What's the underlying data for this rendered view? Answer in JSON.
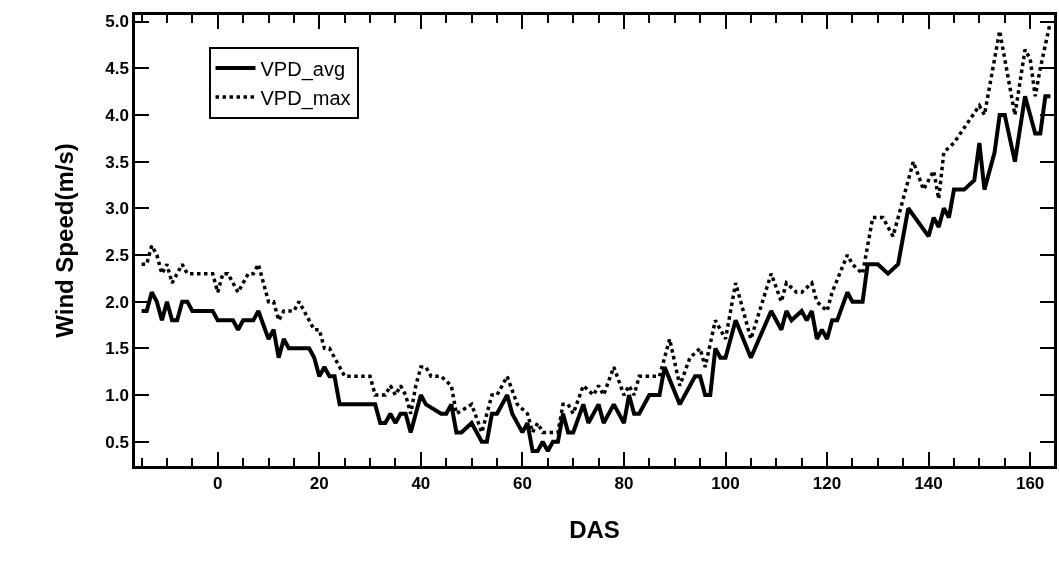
{
  "chart_data": {
    "type": "line",
    "xlabel": "DAS",
    "ylabel": "Wind Speed(m/s)",
    "xlim": [
      -16.3,
      164.7
    ],
    "ylim": [
      0.24,
      5.07
    ],
    "xticks": [
      {
        "value": -15,
        "label": null
      },
      {
        "value": -10,
        "label": null
      },
      {
        "value": -5,
        "label": null
      },
      0,
      {
        "value": 5,
        "label": null
      },
      {
        "value": 10,
        "label": null
      },
      {
        "value": 15,
        "label": null
      },
      20,
      {
        "value": 25,
        "label": null
      },
      {
        "value": 30,
        "label": null
      },
      {
        "value": 35,
        "label": null
      },
      40,
      {
        "value": 45,
        "label": null
      },
      {
        "value": 50,
        "label": null
      },
      {
        "value": 55,
        "label": null
      },
      60,
      {
        "value": 65,
        "label": null
      },
      {
        "value": 70,
        "label": null
      },
      {
        "value": 75,
        "label": null
      },
      80,
      {
        "value": 85,
        "label": null
      },
      {
        "value": 90,
        "label": null
      },
      {
        "value": 95,
        "label": null
      },
      100,
      {
        "value": 105,
        "label": null
      },
      {
        "value": 110,
        "label": null
      },
      {
        "value": 115,
        "label": null
      },
      120,
      {
        "value": 125,
        "label": null
      },
      {
        "value": 130,
        "label": null
      },
      {
        "value": 135,
        "label": null
      },
      140,
      {
        "value": 145,
        "label": null
      },
      {
        "value": 150,
        "label": null
      },
      {
        "value": 155,
        "label": null
      },
      160
    ],
    "yticks": [
      0.5,
      {
        "value": 1,
        "label": "1.0"
      },
      1.5,
      {
        "value": 2,
        "label": "2.0"
      },
      2.5,
      {
        "value": 3,
        "label": "3.0"
      },
      3.5,
      {
        "value": 4,
        "label": "4.0"
      },
      4.5,
      {
        "value": 5,
        "label": "5.0"
      }
    ],
    "legend": "top left",
    "series": [
      {
        "name": "VPD_avg",
        "color": "#000000",
        "line_style": "solid",
        "x": [
          -15,
          -14,
          -13,
          -12,
          -11,
          -10,
          -9,
          -8,
          -7,
          -6,
          -5,
          -1,
          0,
          3,
          4,
          5,
          7,
          8,
          10,
          11,
          12,
          13,
          14,
          18,
          19,
          20,
          21,
          22,
          23,
          24,
          31,
          32,
          33,
          34,
          35,
          36,
          37,
          38,
          39,
          40,
          41,
          44,
          45,
          46,
          47,
          48,
          50,
          52,
          53,
          54,
          55,
          57,
          58,
          60,
          61,
          62,
          63,
          64,
          65,
          66,
          67,
          68,
          69,
          70,
          72,
          73,
          75,
          76,
          78,
          80,
          81,
          82,
          83,
          85,
          87,
          88,
          91,
          93,
          94,
          95,
          96,
          97,
          98,
          99,
          100,
          102,
          105,
          109,
          111,
          112,
          113,
          115,
          116,
          117,
          118,
          119,
          120,
          121,
          122,
          124,
          125,
          127,
          128,
          130,
          132,
          134,
          136,
          140,
          141,
          142,
          143,
          144,
          145,
          147,
          149,
          150,
          151,
          153,
          154,
          155,
          157,
          159,
          161,
          162,
          163,
          164
        ],
        "values": [
          1.9,
          1.9,
          2.1,
          2.0,
          1.8,
          2.0,
          1.8,
          1.8,
          2.0,
          2.0,
          1.9,
          1.9,
          1.8,
          1.8,
          1.7,
          1.8,
          1.8,
          1.9,
          1.6,
          1.7,
          1.4,
          1.6,
          1.5,
          1.5,
          1.4,
          1.2,
          1.3,
          1.2,
          1.2,
          0.9,
          0.9,
          0.7,
          0.7,
          0.8,
          0.7,
          0.8,
          0.8,
          0.6,
          0.8,
          1.0,
          0.9,
          0.8,
          0.8,
          0.9,
          0.6,
          0.6,
          0.7,
          0.5,
          0.5,
          0.8,
          0.8,
          1.0,
          0.8,
          0.6,
          0.7,
          0.4,
          0.4,
          0.5,
          0.4,
          0.5,
          0.5,
          0.8,
          0.6,
          0.6,
          0.9,
          0.7,
          0.9,
          0.7,
          0.9,
          0.7,
          1.0,
          0.8,
          0.8,
          1.0,
          1.0,
          1.3,
          0.9,
          1.1,
          1.2,
          1.2,
          1.0,
          1.0,
          1.5,
          1.4,
          1.4,
          1.8,
          1.4,
          1.9,
          1.7,
          1.9,
          1.8,
          1.9,
          1.8,
          1.9,
          1.6,
          1.7,
          1.6,
          1.8,
          1.8,
          2.1,
          2.0,
          2.0,
          2.4,
          2.4,
          2.3,
          2.4,
          3.0,
          2.7,
          2.9,
          2.8,
          3.0,
          2.9,
          3.2,
          3.2,
          3.3,
          3.7,
          3.2,
          3.6,
          4.0,
          4.0,
          3.5,
          4.2,
          3.8,
          3.8,
          4.2,
          4.2
        ]
      },
      {
        "name": "VPD_max",
        "color": "#000000",
        "line_style": "dotted",
        "x": [
          -15,
          -14,
          -13,
          -12,
          -11,
          -10,
          -9,
          -8,
          -7,
          -6,
          -1,
          0,
          1,
          2,
          3,
          4,
          5,
          6,
          7,
          8,
          9,
          10,
          11,
          12,
          13,
          15,
          16,
          17,
          18,
          19,
          20,
          21,
          22,
          23,
          24,
          25,
          30,
          31,
          32,
          33,
          34,
          35,
          36,
          37,
          38,
          39,
          40,
          41,
          42,
          44,
          46,
          47,
          50,
          52,
          54,
          55,
          57,
          59,
          61,
          62,
          63,
          64,
          67,
          68,
          69,
          70,
          72,
          74,
          75,
          76,
          78,
          80,
          81,
          82,
          83,
          87,
          89,
          91,
          93,
          95,
          96,
          98,
          100,
          102,
          103,
          105,
          109,
          111,
          112,
          114,
          115,
          117,
          118,
          120,
          121,
          124,
          125,
          127,
          129,
          131,
          133,
          137,
          139,
          141,
          142,
          143,
          145,
          150,
          151,
          154,
          157,
          159,
          160,
          161,
          162,
          164
        ],
        "values": [
          2.4,
          2.4,
          2.6,
          2.5,
          2.3,
          2.4,
          2.2,
          2.3,
          2.4,
          2.3,
          2.3,
          2.1,
          2.3,
          2.3,
          2.2,
          2.1,
          2.2,
          2.3,
          2.3,
          2.4,
          2.2,
          2.0,
          2.0,
          1.8,
          1.9,
          1.9,
          2.0,
          1.9,
          1.8,
          1.7,
          1.7,
          1.5,
          1.5,
          1.4,
          1.3,
          1.2,
          1.2,
          1.0,
          1.0,
          1.0,
          1.1,
          1.0,
          1.1,
          1.0,
          0.8,
          1.1,
          1.3,
          1.3,
          1.2,
          1.2,
          1.1,
          0.8,
          0.9,
          0.6,
          1.0,
          1.0,
          1.2,
          0.9,
          0.8,
          0.6,
          0.7,
          0.6,
          0.6,
          0.9,
          0.9,
          0.8,
          1.1,
          1.0,
          1.1,
          1.0,
          1.3,
          1.0,
          1.1,
          1.0,
          1.2,
          1.2,
          1.6,
          1.1,
          1.4,
          1.5,
          1.3,
          1.8,
          1.6,
          2.2,
          2.0,
          1.6,
          2.3,
          2.0,
          2.2,
          2.1,
          2.1,
          2.2,
          2.0,
          1.9,
          2.1,
          2.5,
          2.4,
          2.3,
          2.9,
          2.9,
          2.7,
          3.5,
          3.2,
          3.4,
          3.1,
          3.6,
          3.7,
          4.1,
          4.0,
          4.9,
          4.0,
          4.7,
          4.6,
          4.2,
          4.5,
          5.0
        ]
      }
    ]
  }
}
